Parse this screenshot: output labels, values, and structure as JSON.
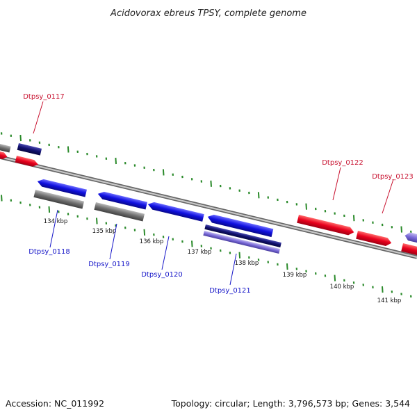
{
  "title": "Acidovorax ebreus TPSY, complete genome",
  "footer": {
    "accession": "Accession: NC_011992",
    "summary": "Topology: circular; Length: 3,796,573 bp; Genes: 3,544"
  },
  "colors": {
    "forward_cds": "#e8001c",
    "reverse_cds": "#1010e0",
    "dark_blue_cds": "#10106e",
    "gray_feature": "#707070",
    "purple_feature": "#7a6ad8",
    "backbone": "#888888",
    "tick_marks": "#2a8a2a",
    "forward_label": "#c8102e",
    "reverse_label": "#1515c8"
  },
  "scale": {
    "unit": "kbp",
    "ticks": [
      "134 kbp",
      "135 kbp",
      "136 kbp",
      "137 kbp",
      "138 kbp",
      "139 kbp",
      "140 kbp",
      "141 kbp"
    ]
  },
  "gene_labels": {
    "forward": [
      "Dtpsy_0117",
      "Dtpsy_0122",
      "Dtpsy_0123"
    ],
    "reverse": [
      "Dtpsy_0118",
      "Dtpsy_0119",
      "Dtpsy_0120",
      "Dtpsy_0121"
    ]
  }
}
